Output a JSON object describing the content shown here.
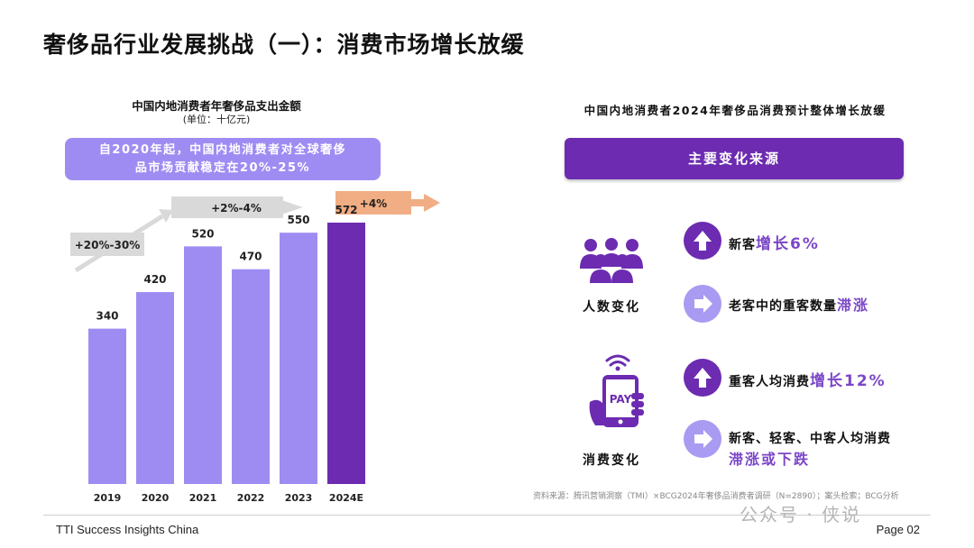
{
  "title": "奢侈品行业发展挑战（一）：消费市场增长放缓",
  "chart": {
    "title": "中国内地消费者年奢侈品支出金额",
    "unit": "(单位：十亿元)",
    "callout_line1": "自2020年起，中国内地消费者对全球奢侈",
    "callout_line2": "品市场贡献稳定在20%-25%",
    "growth_labels": [
      "+20%-30%",
      "+2%-4%",
      "+4%"
    ]
  },
  "chart_data": {
    "type": "bar",
    "title": "中国内地消费者年奢侈品支出金额",
    "ylabel": "(单位：十亿元)",
    "categories": [
      "2019",
      "2020",
      "2021",
      "2022",
      "2023",
      "2024E"
    ],
    "values": [
      340,
      420,
      520,
      470,
      550,
      572
    ],
    "value_labels": [
      "340",
      "420",
      "520",
      "470",
      "550",
      "572"
    ],
    "colors": {
      "actual": "#9f8cf3",
      "estimate": "#6c2bb0"
    },
    "ylim": [
      0,
      620
    ],
    "grid": false
  },
  "right": {
    "title": "中国内地消费者2024年奢侈品消费预计整体增长放缓",
    "banner": "主要变化来源",
    "people": {
      "icon": "people-group-icon",
      "label": "人数变化",
      "items": [
        {
          "icon": "arrow-up-icon",
          "text": "新客",
          "highlight": "增长6%"
        },
        {
          "icon": "arrow-right-icon",
          "text": "老客中的重客数量",
          "highlight": "滞涨"
        }
      ]
    },
    "spend": {
      "icon": "phone-pay-icon",
      "pay_text": "PAY",
      "label": "消费变化",
      "items": [
        {
          "icon": "arrow-up-icon",
          "text": "重客人均消费",
          "highlight": "增长12%"
        },
        {
          "icon": "arrow-right-icon",
          "text": "新客、轻客、中客人均消费",
          "highlight": "滞涨或下跌"
        }
      ]
    }
  },
  "source": "资料来源：腾讯营销洞察（TMI）×BCG2024年奢侈品消费者调研（N=2890）；案头检索；BCG分析",
  "footer": {
    "left": "TTI Success Insights China",
    "right": "Page 02"
  },
  "watermark": "公众号 · 侠说",
  "colors": {
    "purple_dark": "#6c2bb0",
    "purple_light": "#9f8cf3",
    "highlight": "#7b47c8",
    "arrow_gray": "#d9d9d9",
    "arrow_orange": "#f1ad84"
  }
}
